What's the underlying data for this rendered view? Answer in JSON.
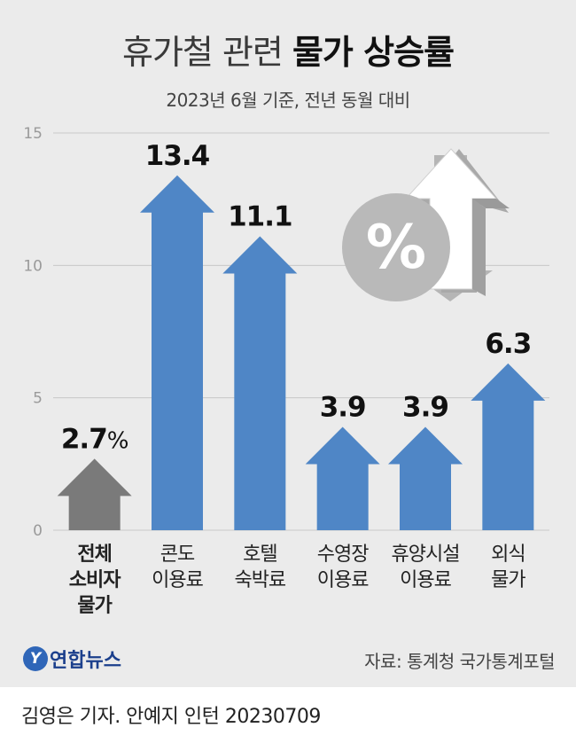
{
  "header": {
    "title_light": "휴가철 관련",
    "title_bold": "물가 상승률",
    "subtitle": "2023년 6월 기준, 전년 동월 대비"
  },
  "chart_data": {
    "type": "bar",
    "title": "휴가철 관련 물가 상승률",
    "subtitle": "2023년 6월 기준, 전년 동월 대비",
    "categories": [
      [
        "전체",
        "소비자",
        "물가"
      ],
      [
        "콘도",
        "이용료"
      ],
      [
        "호텔",
        "숙박료"
      ],
      [
        "수영장",
        "이용료"
      ],
      [
        "휴양시설",
        "이용료"
      ],
      [
        "외식",
        "물가"
      ]
    ],
    "values": [
      2.7,
      13.4,
      11.1,
      3.9,
      3.9,
      6.3
    ],
    "value_labels": [
      "2.7",
      "13.4",
      "11.1",
      "3.9",
      "3.9",
      "6.3"
    ],
    "first_label_unit": "%",
    "yticks": [
      0,
      5,
      10,
      15
    ],
    "ylim": [
      0,
      15
    ],
    "grid": true,
    "colors": {
      "highlight": "#7a7a7a",
      "bars": "#4f86c6",
      "bar_top": "#5b93d3"
    }
  },
  "footer": {
    "logo_text": "연합뉴스",
    "source": "자료: 통계청 국가통계포털",
    "credit": "김영은 기자. 안예지 인턴  20230709"
  }
}
